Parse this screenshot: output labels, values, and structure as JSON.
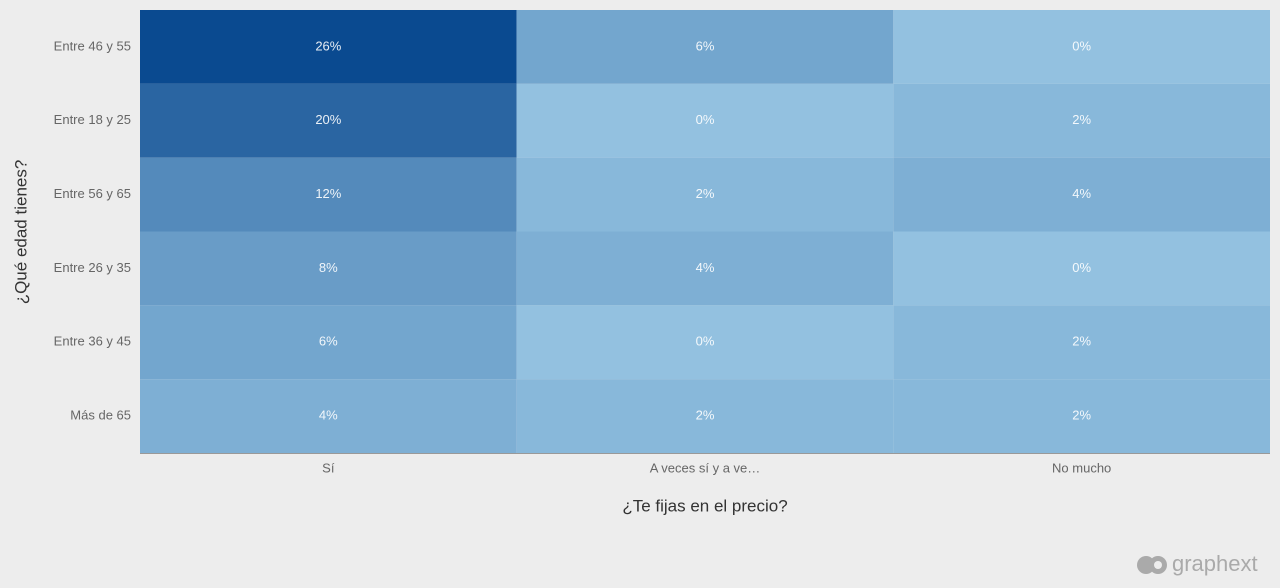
{
  "chart_data": {
    "type": "heatmap",
    "x_title": "¿Te fijas en el precio?",
    "y_title": "¿Qué edad tienes?",
    "x_categories": [
      "Sí",
      "A veces sí y a ve…",
      "No mucho"
    ],
    "y_categories": [
      "Entre 46 y 55",
      "Entre 18 y 25",
      "Entre 56 y 65",
      "Entre 26 y 35",
      "Entre 36 y 45",
      "Más de 65"
    ],
    "values": [
      [
        26,
        6,
        0
      ],
      [
        20,
        0,
        2
      ],
      [
        12,
        2,
        4
      ],
      [
        8,
        4,
        0
      ],
      [
        6,
        0,
        2
      ],
      [
        4,
        2,
        2
      ]
    ],
    "value_labels": [
      [
        "26%",
        "6%",
        "0%"
      ],
      [
        "20%",
        "0%",
        "2%"
      ],
      [
        "12%",
        "2%",
        "4%"
      ],
      [
        "8%",
        "4%",
        "0%"
      ],
      [
        "6%",
        "0%",
        "2%"
      ],
      [
        "4%",
        "2%",
        "2%"
      ]
    ],
    "colorscale": [
      "#93c1e0",
      "#0a4a90"
    ]
  },
  "brand": "graphext"
}
